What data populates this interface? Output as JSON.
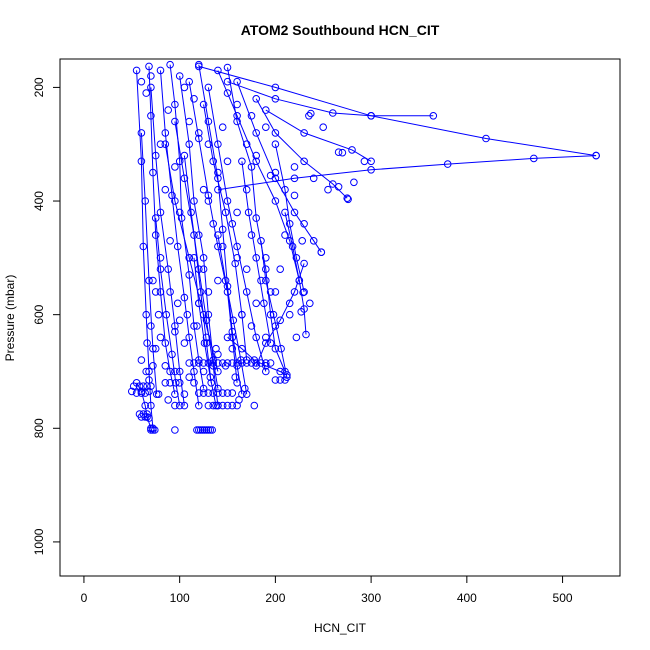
{
  "chart_data": {
    "type": "scatter",
    "title": "ATOM2 Southbound HCN_CIT",
    "xlabel": "HCN_CIT",
    "ylabel": "Pressure (mbar)",
    "xlim": [
      -25,
      560
    ],
    "ylim": [
      1060,
      150
    ],
    "y_inverted": true,
    "x_ticks": [
      0,
      100,
      200,
      300,
      400,
      500
    ],
    "y_ticks": [
      200,
      400,
      600,
      800,
      1000
    ],
    "grid": false,
    "legend": "none",
    "color": "#0000ff",
    "marker": "open-circle",
    "connected_profiles": true,
    "series": [
      {
        "x": [
          68,
          70,
          72,
          75,
          80,
          85,
          90,
          95
        ],
        "y": [
          163,
          250,
          350,
          460,
          560,
          650,
          700,
          740
        ]
      },
      {
        "x": [
          90,
          95,
          100,
          102,
          110,
          115,
          120,
          125
        ],
        "y": [
          160,
          230,
          330,
          430,
          530,
          620,
          680,
          730
        ]
      },
      {
        "x": [
          120,
          130,
          140,
          145,
          150,
          155,
          160,
          165
        ],
        "y": [
          160,
          260,
          360,
          450,
          550,
          630,
          690,
          740
        ]
      },
      {
        "x": [
          150,
          160,
          175,
          180,
          190,
          195,
          200,
          210
        ],
        "y": [
          165,
          260,
          340,
          430,
          520,
          600,
          660,
          700
        ]
      },
      {
        "x": [
          80,
          85,
          92,
          98,
          105,
          110,
          115,
          120
        ],
        "y": [
          170,
          280,
          390,
          480,
          570,
          640,
          700,
          760
        ]
      },
      {
        "x": [
          100,
          110,
          115,
          125,
          130,
          135,
          140
        ],
        "y": [
          180,
          300,
          400,
          500,
          600,
          680,
          730
        ]
      },
      {
        "x": [
          130,
          140,
          150,
          160,
          170,
          180,
          190
        ],
        "y": [
          200,
          300,
          400,
          480,
          560,
          640,
          700
        ]
      },
      {
        "x": [
          70,
          75,
          80,
          88,
          95,
          100,
          105
        ],
        "y": [
          200,
          320,
          420,
          520,
          620,
          700,
          760
        ]
      },
      {
        "x": [
          140,
          160,
          180,
          200,
          215,
          225
        ],
        "y": [
          170,
          250,
          330,
          400,
          470,
          540
        ]
      },
      {
        "x": [
          110,
          120,
          130,
          140,
          150,
          155,
          160
        ],
        "y": [
          190,
          290,
          390,
          480,
          560,
          640,
          720
        ]
      },
      {
        "x": [
          55,
          60,
          62,
          65,
          68,
          70,
          72
        ],
        "y": [
          170,
          330,
          480,
          600,
          700,
          760,
          800
        ]
      },
      {
        "x": [
          160,
          180,
          200,
          220,
          240,
          248
        ],
        "y": [
          190,
          280,
          360,
          420,
          470,
          490
        ]
      },
      {
        "x": [
          125,
          135,
          148,
          158,
          165,
          170
        ],
        "y": [
          230,
          330,
          420,
          510,
          600,
          680
        ]
      },
      {
        "x": [
          95,
          105,
          115,
          122,
          128,
          133
        ],
        "y": [
          260,
          360,
          460,
          560,
          650,
          720
        ]
      },
      {
        "x": [
          180,
          200,
          230,
          260,
          275
        ],
        "y": [
          220,
          280,
          330,
          370,
          395
        ]
      },
      {
        "x": [
          190,
          230,
          280,
          300
        ],
        "y": [
          240,
          280,
          310,
          330
        ]
      },
      {
        "x": [
          150,
          200,
          260,
          300,
          365
        ],
        "y": [
          190,
          220,
          245,
          250,
          250
        ]
      },
      {
        "x": [
          120,
          200,
          300,
          420,
          535
        ],
        "y": [
          163,
          200,
          250,
          290,
          320
        ]
      },
      {
        "x": [
          140,
          220,
          300,
          380,
          470,
          535
        ],
        "y": [
          380,
          360,
          345,
          335,
          325,
          320
        ]
      },
      {
        "x": [
          85,
          95,
          110,
          125,
          140
        ],
        "y": [
          300,
          400,
          500,
          600,
          700
        ]
      },
      {
        "x": [
          200,
          210,
          215,
          222,
          230
        ],
        "y": [
          300,
          380,
          440,
          500,
          560
        ]
      },
      {
        "x": [
          105,
          112,
          120,
          128,
          135,
          140
        ],
        "y": [
          320,
          420,
          520,
          610,
          690,
          760
        ]
      },
      {
        "x": [
          60,
          64,
          68,
          72,
          76
        ],
        "y": [
          280,
          400,
          540,
          660,
          740
        ]
      },
      {
        "x": [
          165,
          172,
          180,
          188,
          195
        ],
        "y": [
          330,
          420,
          500,
          580,
          650
        ]
      },
      {
        "x": [
          210,
          218,
          225,
          230,
          232
        ],
        "y": [
          420,
          480,
          540,
          590,
          635
        ]
      },
      {
        "x": [
          75,
          80,
          86,
          92,
          96,
          100
        ],
        "y": [
          430,
          520,
          600,
          670,
          720,
          760
        ]
      },
      {
        "x": [
          140,
          148,
          156,
          164,
          170
        ],
        "y": [
          460,
          540,
          610,
          680,
          740
        ]
      },
      {
        "x": [
          185,
          190,
          198,
          206,
          212
        ],
        "y": [
          470,
          540,
          600,
          660,
          710
        ]
      },
      {
        "x": [
          115,
          120,
          126,
          132,
          138
        ],
        "y": [
          500,
          580,
          650,
          710,
          760
        ]
      },
      {
        "x": [
          230,
          220,
          205,
          190,
          180
        ],
        "y": [
          510,
          560,
          610,
          650,
          690
        ]
      },
      {
        "x": [
          150,
          165,
          178,
          190,
          205,
          212
        ],
        "y": [
          640,
          660,
          680,
          690,
          700,
          706
        ]
      },
      {
        "x": [
          55,
          60,
          64,
          66,
          70
        ],
        "y": [
          720,
          735,
          760,
          780,
          800
        ]
      }
    ],
    "scatter_only": [
      {
        "x": 50,
        "y": 735
      },
      {
        "x": 52,
        "y": 726
      },
      {
        "x": 55,
        "y": 738
      },
      {
        "x": 58,
        "y": 726
      },
      {
        "x": 60,
        "y": 738
      },
      {
        "x": 62,
        "y": 726
      },
      {
        "x": 64,
        "y": 738
      },
      {
        "x": 66,
        "y": 726
      },
      {
        "x": 68,
        "y": 735
      },
      {
        "x": 70,
        "y": 726
      },
      {
        "x": 58,
        "y": 775
      },
      {
        "x": 60,
        "y": 780
      },
      {
        "x": 62,
        "y": 775
      },
      {
        "x": 64,
        "y": 780
      },
      {
        "x": 66,
        "y": 775
      },
      {
        "x": 68,
        "y": 782
      },
      {
        "x": 70,
        "y": 803
      },
      {
        "x": 72,
        "y": 803
      },
      {
        "x": 74,
        "y": 803
      },
      {
        "x": 95,
        "y": 803
      },
      {
        "x": 118,
        "y": 803
      },
      {
        "x": 120,
        "y": 803
      },
      {
        "x": 122,
        "y": 803
      },
      {
        "x": 124,
        "y": 803
      },
      {
        "x": 126,
        "y": 803
      },
      {
        "x": 128,
        "y": 803
      },
      {
        "x": 130,
        "y": 803
      },
      {
        "x": 132,
        "y": 803
      },
      {
        "x": 134,
        "y": 803
      },
      {
        "x": 110,
        "y": 685
      },
      {
        "x": 115,
        "y": 685
      },
      {
        "x": 120,
        "y": 685
      },
      {
        "x": 125,
        "y": 685
      },
      {
        "x": 130,
        "y": 685
      },
      {
        "x": 135,
        "y": 685
      },
      {
        "x": 140,
        "y": 685
      },
      {
        "x": 145,
        "y": 685
      },
      {
        "x": 150,
        "y": 685
      },
      {
        "x": 155,
        "y": 685
      },
      {
        "x": 160,
        "y": 685
      },
      {
        "x": 165,
        "y": 685
      },
      {
        "x": 170,
        "y": 685
      },
      {
        "x": 175,
        "y": 685
      },
      {
        "x": 180,
        "y": 685
      },
      {
        "x": 185,
        "y": 685
      },
      {
        "x": 190,
        "y": 685
      },
      {
        "x": 195,
        "y": 685
      },
      {
        "x": 120,
        "y": 738
      },
      {
        "x": 125,
        "y": 738
      },
      {
        "x": 130,
        "y": 738
      },
      {
        "x": 135,
        "y": 738
      },
      {
        "x": 140,
        "y": 738
      },
      {
        "x": 145,
        "y": 738
      },
      {
        "x": 150,
        "y": 738
      },
      {
        "x": 155,
        "y": 738
      },
      {
        "x": 130,
        "y": 760
      },
      {
        "x": 135,
        "y": 760
      },
      {
        "x": 140,
        "y": 760
      },
      {
        "x": 145,
        "y": 760
      },
      {
        "x": 150,
        "y": 760
      },
      {
        "x": 155,
        "y": 760
      },
      {
        "x": 160,
        "y": 760
      },
      {
        "x": 178,
        "y": 760
      },
      {
        "x": 200,
        "y": 715
      },
      {
        "x": 205,
        "y": 715
      },
      {
        "x": 210,
        "y": 715
      },
      {
        "x": 90,
        "y": 720
      },
      {
        "x": 100,
        "y": 720
      },
      {
        "x": 110,
        "y": 710
      },
      {
        "x": 95,
        "y": 700
      },
      {
        "x": 85,
        "y": 690
      },
      {
        "x": 75,
        "y": 660
      },
      {
        "x": 80,
        "y": 640
      },
      {
        "x": 95,
        "y": 630
      },
      {
        "x": 105,
        "y": 650
      },
      {
        "x": 100,
        "y": 610
      },
      {
        "x": 70,
        "y": 620
      },
      {
        "x": 65,
        "y": 700
      },
      {
        "x": 60,
        "y": 680
      },
      {
        "x": 75,
        "y": 560
      },
      {
        "x": 80,
        "y": 500
      },
      {
        "x": 90,
        "y": 470
      },
      {
        "x": 100,
        "y": 420
      },
      {
        "x": 85,
        "y": 380
      },
      {
        "x": 80,
        "y": 300
      },
      {
        "x": 95,
        "y": 340
      },
      {
        "x": 110,
        "y": 260
      },
      {
        "x": 115,
        "y": 220
      },
      {
        "x": 105,
        "y": 200
      },
      {
        "x": 88,
        "y": 240
      },
      {
        "x": 65,
        "y": 210
      },
      {
        "x": 60,
        "y": 190
      },
      {
        "x": 70,
        "y": 180
      },
      {
        "x": 150,
        "y": 210
      },
      {
        "x": 160,
        "y": 230
      },
      {
        "x": 175,
        "y": 250
      },
      {
        "x": 190,
        "y": 270
      },
      {
        "x": 170,
        "y": 300
      },
      {
        "x": 180,
        "y": 320
      },
      {
        "x": 200,
        "y": 350
      },
      {
        "x": 195,
        "y": 355
      },
      {
        "x": 170,
        "y": 380
      },
      {
        "x": 160,
        "y": 420
      },
      {
        "x": 155,
        "y": 440
      },
      {
        "x": 175,
        "y": 460
      },
      {
        "x": 190,
        "y": 500
      },
      {
        "x": 205,
        "y": 520
      },
      {
        "x": 200,
        "y": 560
      },
      {
        "x": 180,
        "y": 580
      },
      {
        "x": 165,
        "y": 600
      },
      {
        "x": 175,
        "y": 620
      },
      {
        "x": 190,
        "y": 640
      },
      {
        "x": 200,
        "y": 620
      },
      {
        "x": 215,
        "y": 600
      },
      {
        "x": 120,
        "y": 580
      },
      {
        "x": 130,
        "y": 560
      },
      {
        "x": 140,
        "y": 540
      },
      {
        "x": 125,
        "y": 520
      },
      {
        "x": 110,
        "y": 500
      },
      {
        "x": 120,
        "y": 460
      },
      {
        "x": 135,
        "y": 440
      },
      {
        "x": 130,
        "y": 400
      },
      {
        "x": 125,
        "y": 380
      },
      {
        "x": 140,
        "y": 350
      },
      {
        "x": 150,
        "y": 330
      },
      {
        "x": 130,
        "y": 300
      },
      {
        "x": 120,
        "y": 280
      },
      {
        "x": 145,
        "y": 270
      },
      {
        "x": 250,
        "y": 270
      },
      {
        "x": 220,
        "y": 340
      },
      {
        "x": 240,
        "y": 360
      },
      {
        "x": 255,
        "y": 380
      },
      {
        "x": 220,
        "y": 390
      },
      {
        "x": 230,
        "y": 440
      },
      {
        "x": 210,
        "y": 460
      },
      {
        "x": 228,
        "y": 470
      },
      {
        "x": 215,
        "y": 580
      },
      {
        "x": 195,
        "y": 560
      },
      {
        "x": 185,
        "y": 540
      },
      {
        "x": 170,
        "y": 520
      },
      {
        "x": 160,
        "y": 500
      },
      {
        "x": 145,
        "y": 480
      },
      {
        "x": 155,
        "y": 660
      },
      {
        "x": 140,
        "y": 670
      },
      {
        "x": 125,
        "y": 700
      },
      {
        "x": 115,
        "y": 720
      },
      {
        "x": 105,
        "y": 740
      },
      {
        "x": 95,
        "y": 760
      },
      {
        "x": 88,
        "y": 750
      },
      {
        "x": 78,
        "y": 740
      },
      {
        "x": 85,
        "y": 720
      },
      {
        "x": 68,
        "y": 715
      },
      {
        "x": 72,
        "y": 690
      },
      {
        "x": 66,
        "y": 650
      },
      {
        "x": 78,
        "y": 600
      },
      {
        "x": 72,
        "y": 540
      },
      {
        "x": 90,
        "y": 560
      },
      {
        "x": 98,
        "y": 580
      },
      {
        "x": 108,
        "y": 600
      },
      {
        "x": 118,
        "y": 620
      },
      {
        "x": 128,
        "y": 640
      },
      {
        "x": 138,
        "y": 660
      },
      {
        "x": 148,
        "y": 690
      },
      {
        "x": 158,
        "y": 710
      },
      {
        "x": 168,
        "y": 730
      },
      {
        "x": 162,
        "y": 750
      },
      {
        "x": 235,
        "y": 250
      },
      {
        "x": 237,
        "y": 246
      },
      {
        "x": 270,
        "y": 315
      },
      {
        "x": 293,
        "y": 330
      },
      {
        "x": 282,
        "y": 367
      },
      {
        "x": 266,
        "y": 375
      },
      {
        "x": 276,
        "y": 397
      },
      {
        "x": 266,
        "y": 314
      },
      {
        "x": 248,
        "y": 490
      },
      {
        "x": 229,
        "y": 561
      },
      {
        "x": 236,
        "y": 580
      },
      {
        "x": 227,
        "y": 595
      },
      {
        "x": 222,
        "y": 640
      }
    ]
  }
}
